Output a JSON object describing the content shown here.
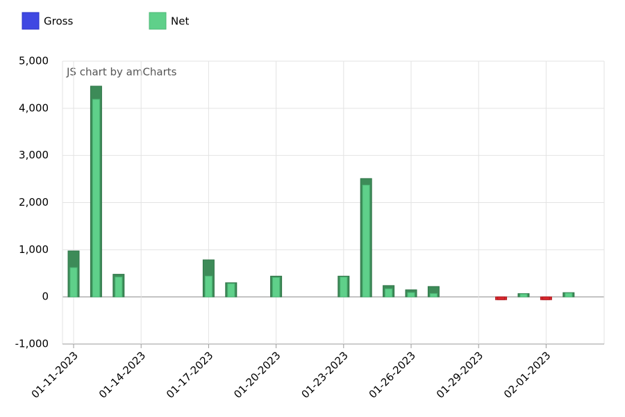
{
  "chart_data": {
    "type": "bar",
    "watermark": "JS chart by amCharts",
    "categories": [
      "01-11-2023",
      null,
      null,
      "01-14-2023",
      null,
      null,
      "01-17-2023",
      null,
      null,
      "01-20-2023",
      null,
      null,
      "01-23-2023",
      null,
      null,
      "01-26-2023",
      null,
      null,
      "01-29-2023",
      null,
      null,
      "02-01-2023",
      null,
      null
    ],
    "series": [
      {
        "name": "Gross",
        "color": "#3f48e2",
        "bar_color": "#3d8b58",
        "values": [
          975,
          4470,
          480,
          0,
          0,
          0,
          785,
          300,
          0,
          440,
          0,
          0,
          440,
          2510,
          240,
          150,
          220,
          0,
          0,
          -60,
          70,
          -60,
          90,
          0
        ]
      },
      {
        "name": "Net",
        "color": "#5fd08a",
        "bar_color": "#5fd08a",
        "values": [
          620,
          4190,
          420,
          0,
          0,
          0,
          440,
          280,
          0,
          410,
          0,
          0,
          420,
          2370,
          170,
          90,
          70,
          0,
          0,
          -60,
          60,
          -60,
          80,
          0
        ]
      }
    ],
    "negative_color": "#d9262c",
    "ylim": [
      -1000,
      5000
    ],
    "yticks": [
      {
        "value": -1000,
        "label": "-1,000"
      },
      0,
      {
        "value": 1000,
        "label": "1,000"
      },
      {
        "value": 2000,
        "label": "2,000"
      },
      {
        "value": 3000,
        "label": "3,000"
      },
      {
        "value": 4000,
        "label": "4,000"
      },
      {
        "value": 5000,
        "label": "5,000"
      }
    ],
    "grid": true
  }
}
